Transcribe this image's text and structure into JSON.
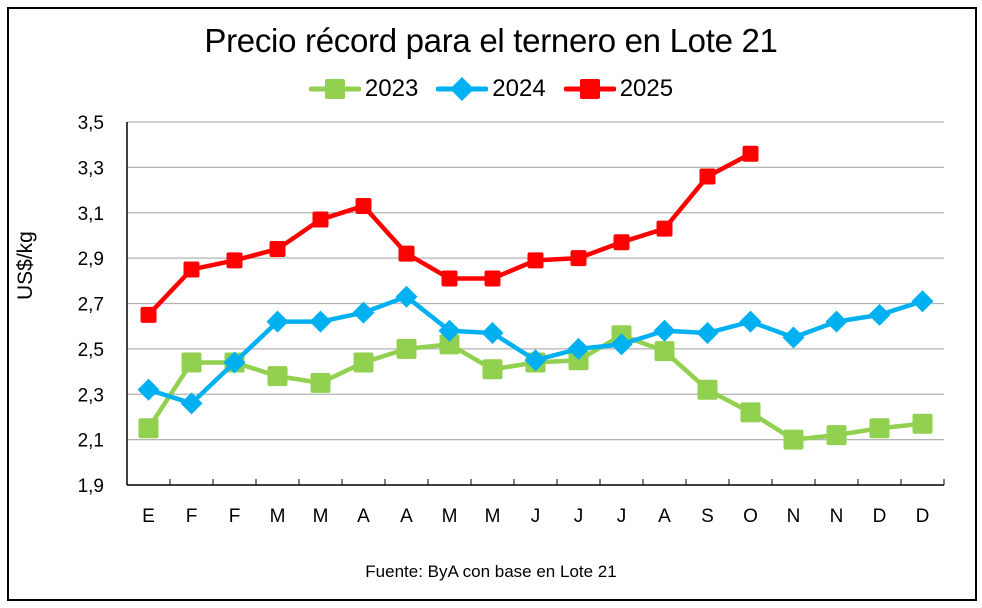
{
  "chart_data": {
    "type": "line",
    "title": "Precio récord para el ternero en Lote 21",
    "xlabel": "",
    "ylabel": "US$/kg",
    "ylim": [
      1.9,
      3.5
    ],
    "yticks": [
      "1,9",
      "2,1",
      "2,3",
      "2,5",
      "2,7",
      "2,9",
      "3,1",
      "3,3",
      "3,5"
    ],
    "ytick_values": [
      1.9,
      2.1,
      2.3,
      2.5,
      2.7,
      2.9,
      3.1,
      3.3,
      3.5
    ],
    "grid": true,
    "legend_position": "top-center",
    "categories": [
      "E",
      "F",
      "F",
      "M",
      "M",
      "A",
      "A",
      "M",
      "M",
      "J",
      "J",
      "J",
      "A",
      "S",
      "O",
      "N",
      "N",
      "D",
      "D"
    ],
    "series": [
      {
        "name": "2023",
        "color": "#92d050",
        "marker": "square",
        "values": [
          2.15,
          2.44,
          2.44,
          2.38,
          2.35,
          2.44,
          2.5,
          2.52,
          2.41,
          2.44,
          2.45,
          2.56,
          2.49,
          2.32,
          2.22,
          2.1,
          2.12,
          2.15,
          2.17
        ]
      },
      {
        "name": "2024",
        "color": "#00b0f0",
        "marker": "diamond",
        "values": [
          2.32,
          2.26,
          2.44,
          2.62,
          2.62,
          2.66,
          2.73,
          2.58,
          2.57,
          2.45,
          2.5,
          2.52,
          2.58,
          2.57,
          2.62,
          2.55,
          2.62,
          2.65,
          2.71
        ]
      },
      {
        "name": "2025",
        "color": "#ff0000",
        "marker": "square",
        "values": [
          2.65,
          2.85,
          2.89,
          2.94,
          3.07,
          3.13,
          2.92,
          2.81,
          2.81,
          2.89,
          2.9,
          2.97,
          3.03,
          3.26,
          3.36,
          null,
          null,
          null,
          null
        ]
      }
    ],
    "source_note": "Fuente: ByA con base en Lote 21"
  }
}
